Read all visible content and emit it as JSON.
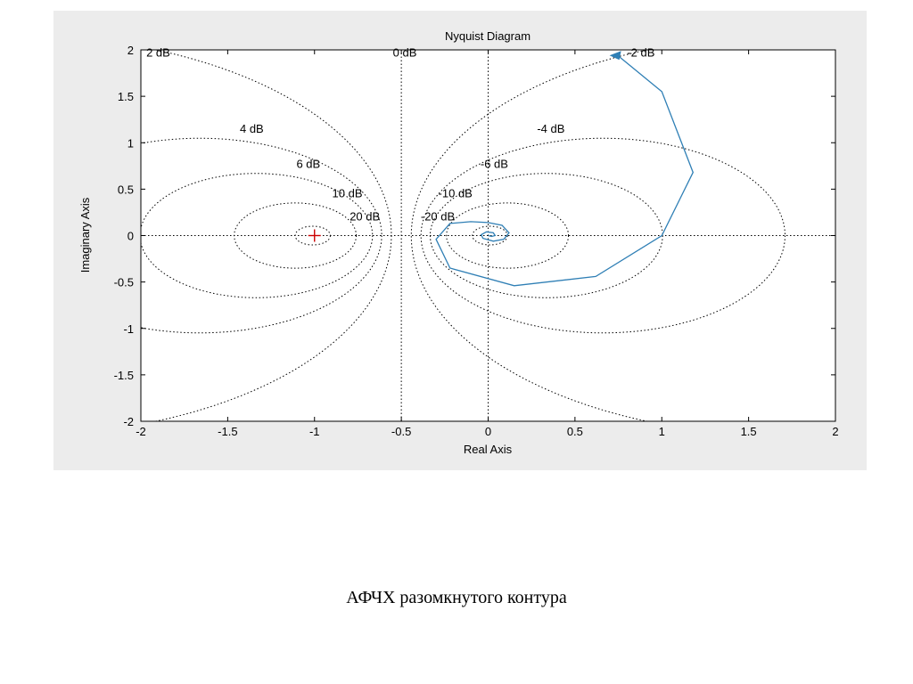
{
  "caption": "АФЧХ разомкнутого контура",
  "chart_data": {
    "type": "line",
    "title": "Nyquist Diagram",
    "xlabel": "Real Axis",
    "ylabel": "Imaginary Axis",
    "xlim": [
      -2,
      2
    ],
    "ylim": [
      -2,
      2
    ],
    "xticks": [
      -2,
      -1.5,
      -1,
      -0.5,
      0,
      0.5,
      1,
      1.5,
      2
    ],
    "xtick_labels": [
      "-2",
      "-1.5",
      "-1",
      "-0.5",
      "0",
      "0.5",
      "1",
      "1.5",
      "2"
    ],
    "yticks": [
      2,
      1.5,
      1,
      0.5,
      0,
      -0.5,
      -1,
      -1.5,
      -2
    ],
    "ytick_labels": [
      "2",
      "1.5",
      "1",
      "0.5",
      "0",
      "-0.5",
      "-1",
      "-1.5",
      "-2"
    ],
    "grid": "M-circles (dotted)",
    "line_color": "#2f7fb5",
    "critical_point": {
      "x": -1,
      "y": 0,
      "marker": "+",
      "color": "#cc0000"
    },
    "m_circles": [
      {
        "label": "2 dB",
        "db": 2
      },
      {
        "label": "4 dB",
        "db": 4
      },
      {
        "label": "6 dB",
        "db": 6
      },
      {
        "label": "10 dB",
        "db": 10
      },
      {
        "label": "20 dB",
        "db": 20
      },
      {
        "label": "-2 dB",
        "db": -2
      },
      {
        "label": "-4 dB",
        "db": -4
      },
      {
        "label": "-6 dB",
        "db": -6
      },
      {
        "label": "-10 dB",
        "db": -10
      },
      {
        "label": "-20 dB",
        "db": -20
      },
      {
        "label": "0 dB",
        "db": 0
      }
    ],
    "series": [
      {
        "x": [
          0.74,
          1.0,
          1.18,
          1.0,
          0.62,
          0.15,
          -0.22,
          -0.3,
          -0.22,
          -0.1,
          0.0,
          0.08,
          0.12,
          0.09,
          0.03,
          -0.03,
          -0.04,
          -0.01,
          0.03,
          0.04,
          0.02,
          0.0
        ],
        "y": [
          1.95,
          1.55,
          0.68,
          0.0,
          -0.44,
          -0.54,
          -0.35,
          -0.04,
          0.13,
          0.15,
          0.14,
          0.11,
          0.03,
          -0.04,
          -0.06,
          -0.03,
          0.01,
          0.04,
          0.03,
          0.0,
          -0.01,
          0.0
        ]
      }
    ]
  }
}
